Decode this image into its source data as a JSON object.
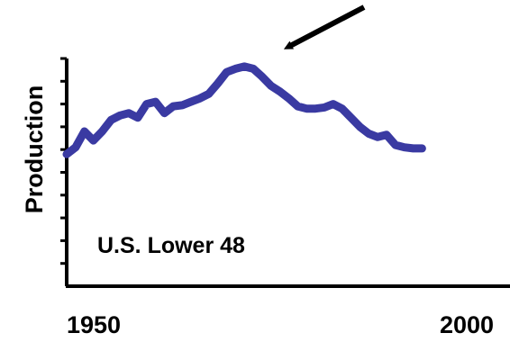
{
  "chart_data": {
    "type": "line",
    "title": "",
    "xlabel": "",
    "ylabel": "Production",
    "xlim": [
      1950,
      2000
    ],
    "ylim": [
      0,
      10
    ],
    "x_tick_labels": [
      "1950",
      "2000"
    ],
    "annotation": "U.S. Lower 48",
    "peak_arrow": {
      "points_to_year": 1970
    },
    "grid": false,
    "legend": "none",
    "colors": {
      "line": "#3a3aa2",
      "axis": "#000000",
      "arrow": "#000000"
    },
    "series": [
      {
        "values": [
          [
            1950,
            5.8
          ],
          [
            1951,
            6.1
          ],
          [
            1952,
            6.8
          ],
          [
            1953,
            6.4
          ],
          [
            1954,
            6.8
          ],
          [
            1955,
            7.3
          ],
          [
            1956,
            7.5
          ],
          [
            1957,
            7.6
          ],
          [
            1958,
            7.4
          ],
          [
            1959,
            8.0
          ],
          [
            1960,
            8.1
          ],
          [
            1961,
            7.6
          ],
          [
            1962,
            7.9
          ],
          [
            1963,
            7.95
          ],
          [
            1964,
            8.1
          ],
          [
            1965,
            8.25
          ],
          [
            1966,
            8.45
          ],
          [
            1967,
            8.9
          ],
          [
            1968,
            9.4
          ],
          [
            1969,
            9.55
          ],
          [
            1970,
            9.65
          ],
          [
            1971,
            9.55
          ],
          [
            1972,
            9.2
          ],
          [
            1973,
            8.8
          ],
          [
            1974,
            8.55
          ],
          [
            1975,
            8.25
          ],
          [
            1976,
            7.9
          ],
          [
            1977,
            7.8
          ],
          [
            1978,
            7.8
          ],
          [
            1979,
            7.85
          ],
          [
            1980,
            8.0
          ],
          [
            1981,
            7.8
          ],
          [
            1982,
            7.4
          ],
          [
            1983,
            7.0
          ],
          [
            1984,
            6.7
          ],
          [
            1985,
            6.55
          ],
          [
            1986,
            6.65
          ],
          [
            1987,
            6.2
          ],
          [
            1988,
            6.1
          ],
          [
            1989,
            6.05
          ],
          [
            1990,
            6.05
          ]
        ]
      }
    ]
  }
}
